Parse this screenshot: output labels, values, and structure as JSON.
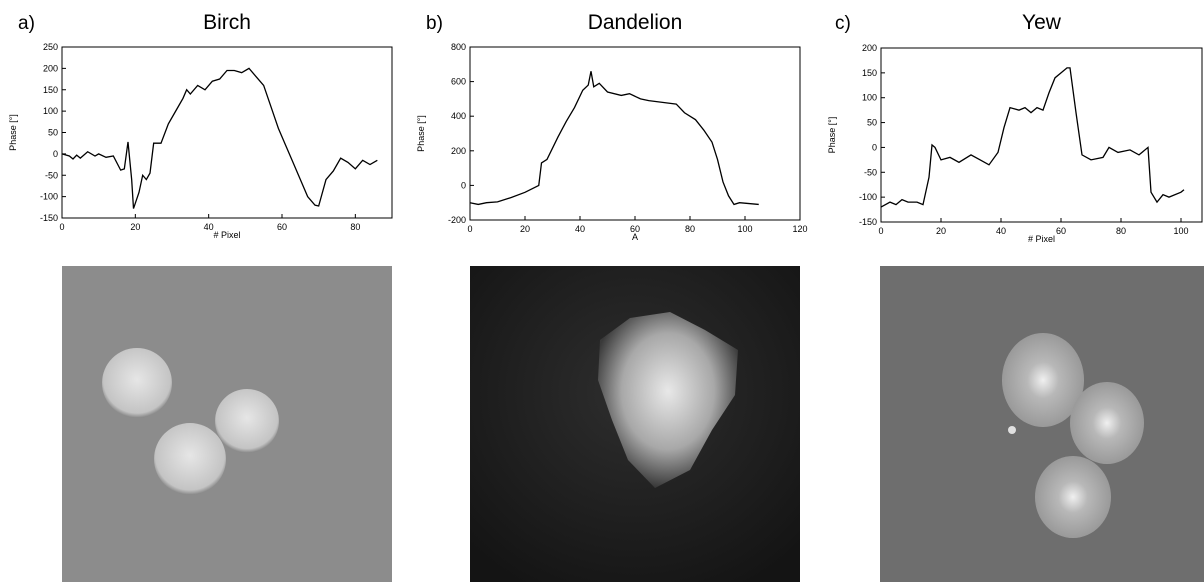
{
  "chart_data": [
    {
      "type": "line",
      "panel": "a)",
      "title": "Birch",
      "xlabel": "# Pixel",
      "ylabel": "Phase [°]",
      "color": "#000000",
      "xlim": [
        0,
        90
      ],
      "xticks": [
        0,
        20,
        40,
        60,
        80
      ],
      "ylim": [
        -150,
        250
      ],
      "yticks": [
        -150,
        -100,
        -50,
        0,
        50,
        100,
        150,
        200,
        250
      ],
      "x": [
        0,
        2,
        3,
        4,
        5,
        7,
        9,
        10,
        12,
        14,
        16,
        17,
        18,
        19,
        19.5,
        21,
        22,
        23,
        24,
        25,
        27,
        29,
        31,
        33,
        34,
        35,
        37,
        39,
        41,
        43,
        45,
        47,
        49,
        51,
        53,
        55,
        57,
        59,
        61,
        63,
        65,
        67,
        69,
        70,
        72,
        74,
        76,
        78,
        80,
        82,
        84,
        86
      ],
      "values": [
        0,
        -5,
        -12,
        -3,
        -10,
        5,
        -5,
        0,
        -8,
        -5,
        -38,
        -35,
        28,
        -60,
        -128,
        -90,
        -50,
        -60,
        -45,
        25,
        25,
        70,
        100,
        130,
        150,
        140,
        160,
        150,
        170,
        175,
        195,
        195,
        190,
        200,
        180,
        160,
        110,
        60,
        20,
        -20,
        -60,
        -100,
        -120,
        -122,
        -60,
        -40,
        -10,
        -20,
        -35,
        -15,
        -25,
        -15
      ]
    },
    {
      "type": "line",
      "panel": "b)",
      "title": "Dandelion",
      "xlabel": "A",
      "ylabel": "Phase [°]",
      "color": "#000000",
      "xlim": [
        0,
        120
      ],
      "xticks": [
        0,
        20,
        40,
        60,
        80,
        100,
        120
      ],
      "ylim": [
        -200,
        800
      ],
      "yticks": [
        -200,
        0,
        200,
        400,
        600,
        800
      ],
      "x": [
        0,
        3,
        6,
        10,
        15,
        20,
        25,
        26,
        28,
        32,
        35,
        38,
        41,
        43,
        44,
        45,
        47,
        50,
        55,
        58,
        62,
        65,
        70,
        75,
        78,
        82,
        85,
        88,
        90,
        92,
        94,
        96,
        98,
        105
      ],
      "values": [
        -100,
        -110,
        -100,
        -95,
        -70,
        -40,
        0,
        130,
        150,
        280,
        370,
        450,
        550,
        580,
        660,
        570,
        590,
        540,
        520,
        530,
        500,
        490,
        480,
        470,
        420,
        380,
        320,
        250,
        150,
        20,
        -60,
        -110,
        -100,
        -110
      ]
    },
    {
      "type": "line",
      "panel": "c)",
      "title": "Yew",
      "xlabel": "# Pixel",
      "ylabel": "Phase [°]",
      "color": "#000000",
      "xlim": [
        0,
        107
      ],
      "xticks": [
        0,
        20,
        40,
        60,
        80,
        100
      ],
      "ylim": [
        -150,
        200
      ],
      "yticks": [
        -150,
        -100,
        -50,
        0,
        50,
        100,
        150,
        200
      ],
      "x": [
        0,
        3,
        5,
        7,
        9,
        12,
        14,
        16,
        17,
        18,
        20,
        23,
        26,
        30,
        33,
        36,
        39,
        41,
        43,
        46,
        48,
        50,
        52,
        54,
        56,
        58,
        60,
        62,
        63,
        65,
        67,
        70,
        74,
        76,
        79,
        83,
        86,
        89,
        90,
        92,
        94,
        96,
        100,
        101
      ],
      "values": [
        -120,
        -110,
        -115,
        -105,
        -110,
        -110,
        -115,
        -60,
        5,
        0,
        -25,
        -20,
        -30,
        -15,
        -25,
        -35,
        -10,
        40,
        80,
        75,
        80,
        70,
        80,
        75,
        110,
        140,
        150,
        160,
        160,
        70,
        -15,
        -25,
        -20,
        0,
        -10,
        -5,
        -15,
        0,
        -90,
        -110,
        -95,
        -100,
        -90,
        -85
      ]
    }
  ]
}
